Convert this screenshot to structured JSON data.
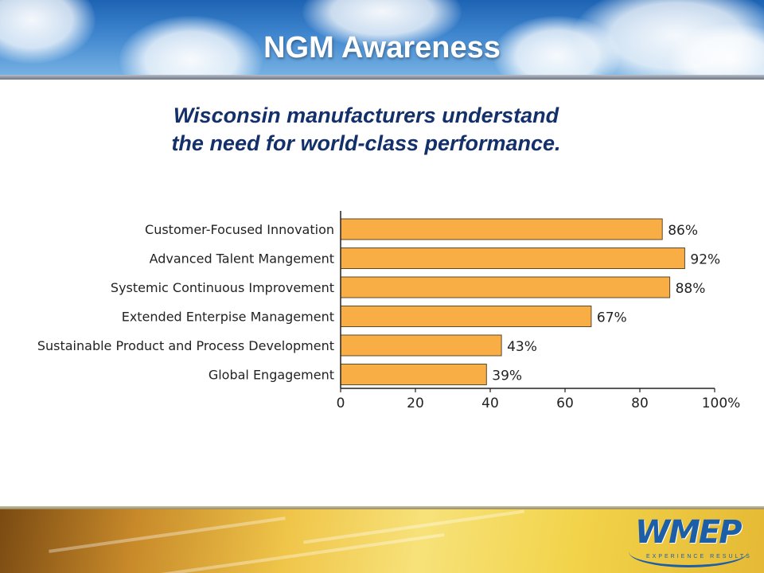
{
  "slide": {
    "title": "NGM Awareness",
    "subtitle_line1": "Wisconsin manufacturers understand",
    "subtitle_line2": "the need for world-class performance.",
    "logo_text": "WMEP",
    "logo_tagline": "EXPERIENCE RESULTS"
  },
  "colors": {
    "bar_fill": "#f8ae45",
    "bar_stroke": "#5a4a2a",
    "title_text": "#ffffff",
    "subtitle_text": "#14306b",
    "header_blue": "#2f74c0"
  },
  "chart_data": {
    "type": "bar",
    "orientation": "horizontal",
    "categories": [
      "Customer-Focused Innovation",
      "Advanced Talent Mangement",
      "Systemic Continuous Improvement",
      "Extended Enterpise Management",
      "Sustainable Product and Process Development",
      "Global Engagement"
    ],
    "values": [
      86,
      92,
      88,
      67,
      43,
      39
    ],
    "value_labels": [
      "86%",
      "92%",
      "88%",
      "67%",
      "43%",
      "39%"
    ],
    "x_ticks": [
      "0",
      "20",
      "40",
      "60",
      "80",
      "100%"
    ],
    "xlim": [
      0,
      100
    ],
    "grid": false,
    "legend": "none"
  }
}
